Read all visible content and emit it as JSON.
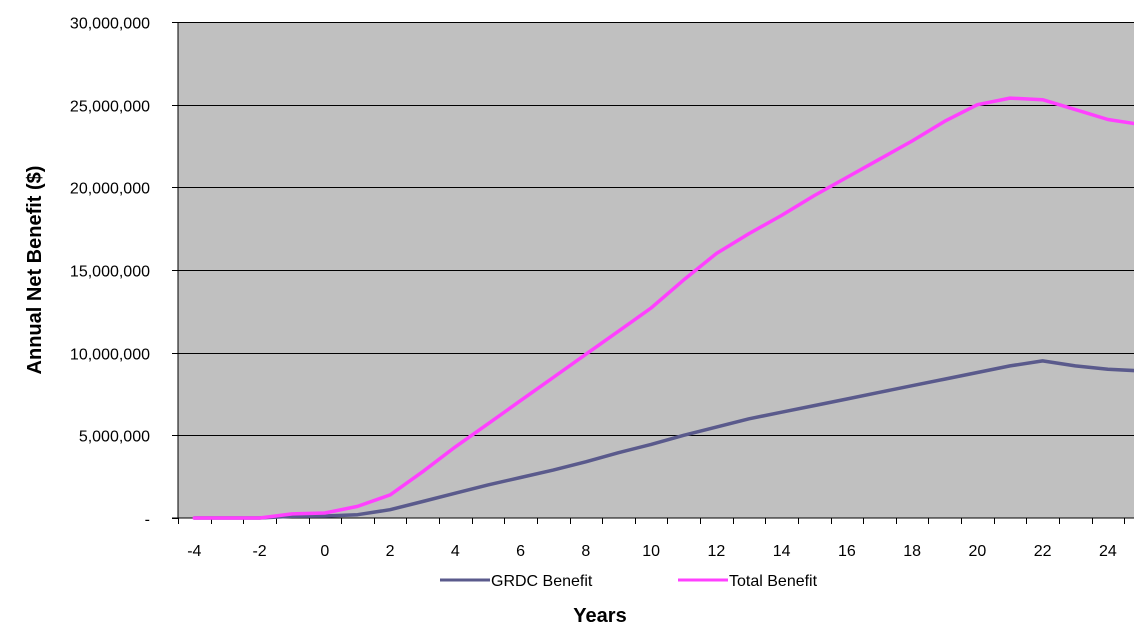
{
  "chart_data": {
    "type": "line",
    "title": "",
    "xlabel": "Years",
    "ylabel": "Annual Net Benefit ($)",
    "x": [
      -4,
      -3,
      -2,
      -1,
      0,
      1,
      2,
      3,
      4,
      5,
      6,
      7,
      8,
      9,
      10,
      11,
      12,
      13,
      14,
      15,
      16,
      17,
      18,
      19,
      20,
      21,
      22,
      23,
      24,
      25
    ],
    "x_tick_labels": [
      "-4",
      "-2",
      "0",
      "2",
      "4",
      "6",
      "8",
      "10",
      "12",
      "14",
      "16",
      "18",
      "20",
      "22",
      "24"
    ],
    "y_tick_labels": [
      "-",
      "5,000,000",
      "10,000,000",
      "15,000,000",
      "20,000,000",
      "25,000,000",
      "30,000,000"
    ],
    "xlim": [
      -4.5,
      24.8
    ],
    "ylim": [
      0,
      30000000
    ],
    "grid": true,
    "legend_position": "bottom",
    "series": [
      {
        "name": "GRDC Benefit",
        "color": "#5a5a8c",
        "values": [
          0,
          0,
          0,
          100000,
          120000,
          200000,
          500000,
          1000000,
          1500000,
          2000000,
          2450000,
          2900000,
          3400000,
          3950000,
          4450000,
          5000000,
          5500000,
          6000000,
          6400000,
          6800000,
          7200000,
          7600000,
          8000000,
          8400000,
          8800000,
          9200000,
          9500000,
          9200000,
          9000000,
          8900000
        ]
      },
      {
        "name": "Total Benefit",
        "color": "#ff40ff",
        "values": [
          0,
          0,
          0,
          250000,
          300000,
          700000,
          1400000,
          2800000,
          4300000,
          5700000,
          7100000,
          8500000,
          9900000,
          11300000,
          12700000,
          14400000,
          16000000,
          17200000,
          18300000,
          19500000,
          20600000,
          21700000,
          22800000,
          24000000,
          25000000,
          25400000,
          25300000,
          24700000,
          24100000,
          23800000
        ]
      }
    ]
  }
}
